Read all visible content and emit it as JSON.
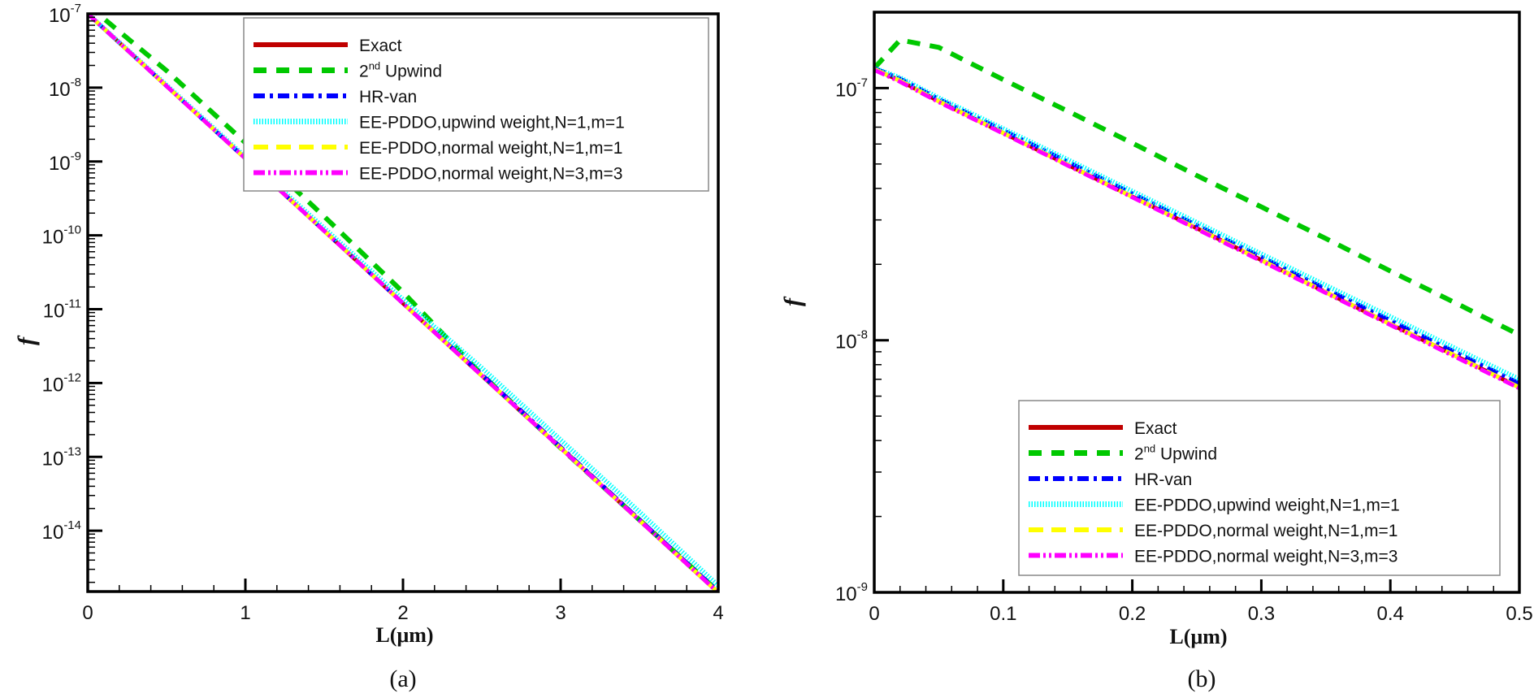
{
  "chart_data": [
    {
      "type": "line",
      "panel_label": "(a)",
      "xlabel": "L(μm)",
      "ylabel": "f",
      "xlim": [
        0,
        4
      ],
      "ylim": [
        1.5e-15,
        1e-07
      ],
      "yscale": "log",
      "xticks": [
        "0",
        "1",
        "2",
        "3",
        "4"
      ],
      "xtick_values": [
        0,
        1,
        2,
        3,
        4
      ],
      "yticks": [
        {
          "base": "10",
          "exp": "-7",
          "value": 1e-07
        },
        {
          "base": "10",
          "exp": "-8",
          "value": 1e-08
        },
        {
          "base": "10",
          "exp": "-9",
          "value": 1e-09
        },
        {
          "base": "10",
          "exp": "-10",
          "value": 1e-10
        },
        {
          "base": "10",
          "exp": "-11",
          "value": 1e-11
        },
        {
          "base": "10",
          "exp": "-12",
          "value": 1e-12
        },
        {
          "base": "10",
          "exp": "-13",
          "value": 1e-13
        },
        {
          "base": "10",
          "exp": "-14",
          "value": 1e-14
        }
      ],
      "grid": false,
      "legend_position": "top-right",
      "x": [
        0,
        0.5,
        1,
        1.5,
        2,
        2.5,
        3,
        3.5,
        4
      ],
      "series": [
        {
          "name": "Exact",
          "color": "#c00000",
          "style": "solid",
          "values": [
            1e-07,
            1.05e-08,
            1.1e-09,
            1.15e-10,
            1.2e-11,
            1.26e-12,
            1.32e-13,
            1.38e-14,
            1.45e-15
          ]
        },
        {
          "name": "2nd Upwind",
          "color": "#00c800",
          "style": "dashed",
          "values": [
            1.3e-07,
            1.7e-08,
            1.8e-09,
            1.8e-10,
            1.7e-11,
            1.3e-12,
            1.32e-13,
            1.4e-14,
            1.5e-15
          ]
        },
        {
          "name": "HR-van",
          "color": "#0000ff",
          "style": "dash-dot",
          "values": [
            1e-07,
            1.05e-08,
            1.1e-09,
            1.15e-10,
            1.2e-11,
            1.3e-12,
            1.36e-13,
            1.42e-14,
            1.5e-15
          ]
        },
        {
          "name": "EE-PDDO,upwind weight,N=1,m=1",
          "color": "#00ffff",
          "style": "dotted",
          "values": [
            1e-07,
            1.08e-08,
            1.15e-09,
            1.25e-10,
            1.35e-11,
            1.6e-12,
            1.7e-13,
            1.8e-14,
            1.8e-15
          ]
        },
        {
          "name": "EE-PDDO,normal weight,N=1,m=1",
          "color": "#ffff00",
          "style": "long-dash",
          "values": [
            1e-07,
            1.05e-08,
            1.1e-09,
            1.15e-10,
            1.2e-11,
            1.26e-12,
            1.32e-13,
            1.38e-14,
            1.45e-15
          ]
        },
        {
          "name": "EE-PDDO,normal weight,N=3,m=3",
          "color": "#ff00ff",
          "style": "dash-dot-dot",
          "values": [
            1e-07,
            1.05e-08,
            1.1e-09,
            1.15e-10,
            1.2e-11,
            1.26e-12,
            1.32e-13,
            1.38e-14,
            1.45e-15
          ]
        }
      ]
    },
    {
      "type": "line",
      "panel_label": "(b)",
      "xlabel": "L(μm)",
      "ylabel": "f",
      "xlim": [
        0,
        0.5
      ],
      "ylim": [
        1e-09,
        2e-07
      ],
      "yscale": "log",
      "xticks": [
        "0",
        "0.1",
        "0.2",
        "0.3",
        "0.4",
        "0.5"
      ],
      "xtick_values": [
        0,
        0.1,
        0.2,
        0.3,
        0.4,
        0.5
      ],
      "yticks": [
        {
          "base": "10",
          "exp": "-7",
          "value": 1e-07
        },
        {
          "base": "10",
          "exp": "-8",
          "value": 1e-08
        },
        {
          "base": "10",
          "exp": "-9",
          "value": 1e-09
        }
      ],
      "grid": false,
      "legend_position": "bottom-right",
      "x": [
        0,
        0.02,
        0.05,
        0.1,
        0.15,
        0.2,
        0.25,
        0.3,
        0.35,
        0.4,
        0.45,
        0.5
      ],
      "series": [
        {
          "name": "Exact",
          "color": "#c00000",
          "style": "solid",
          "values": [
            1.19e-07,
            1.07e-07,
            8.87e-08,
            6.64e-08,
            4.96e-08,
            3.71e-08,
            2.78e-08,
            2.08e-08,
            1.55e-08,
            1.16e-08,
            8.7e-09,
            6.5e-09
          ]
        },
        {
          "name": "2nd Upwind",
          "color": "#00c800",
          "style": "dashed",
          "values": [
            1.2e-07,
            1.55e-07,
            1.45e-07,
            1.08e-07,
            8.1e-08,
            6.05e-08,
            4.5e-08,
            3.38e-08,
            2.53e-08,
            1.88e-08,
            1.41e-08,
            1.05e-08
          ]
        },
        {
          "name": "HR-van",
          "color": "#0000ff",
          "style": "dash-dot",
          "values": [
            1.2e-07,
            1.09e-07,
            9.05e-08,
            6.8e-08,
            5.1e-08,
            3.82e-08,
            2.86e-08,
            2.14e-08,
            1.6e-08,
            1.2e-08,
            9e-09,
            6.75e-09
          ]
        },
        {
          "name": "EE-PDDO,upwind weight,N=1,m=1",
          "color": "#00ffff",
          "style": "dotted",
          "values": [
            1.2e-07,
            1.1e-07,
            9.15e-08,
            6.9e-08,
            5.2e-08,
            3.9e-08,
            2.93e-08,
            2.2e-08,
            1.65e-08,
            1.24e-08,
            9.3e-09,
            7e-09
          ]
        },
        {
          "name": "EE-PDDO,normal weight,N=1,m=1",
          "color": "#ffff00",
          "style": "long-dash",
          "values": [
            1.19e-07,
            1.07e-07,
            8.87e-08,
            6.64e-08,
            4.96e-08,
            3.71e-08,
            2.78e-08,
            2.08e-08,
            1.55e-08,
            1.16e-08,
            8.7e-09,
            6.5e-09
          ]
        },
        {
          "name": "EE-PDDO,normal weight,N=3,m=3",
          "color": "#ff00ff",
          "style": "dash-dot-dot",
          "values": [
            1.18e-07,
            1.06e-07,
            8.8e-08,
            6.6e-08,
            4.93e-08,
            3.69e-08,
            2.76e-08,
            2.06e-08,
            1.54e-08,
            1.15e-08,
            8.6e-09,
            6.45e-09
          ]
        }
      ]
    }
  ]
}
